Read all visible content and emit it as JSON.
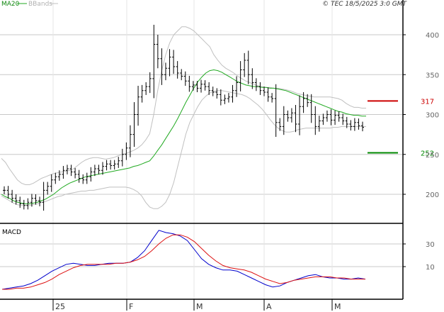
{
  "header": {
    "ma_label": "MA20",
    "bbands_label": "BBands",
    "copyright": "© TEC 18/5/2025 3:0 GMT"
  },
  "macd_label": "MACD",
  "chart_data": [
    {
      "type": "ohlc",
      "title": "",
      "y_ticks": [
        200,
        250,
        300,
        350,
        400
      ],
      "ylim": [
        180,
        410
      ],
      "x_labels": [
        "25",
        "F",
        "M",
        "A",
        "M"
      ],
      "levels": [
        {
          "label": "317",
          "value": 317,
          "color": "#cc0000"
        },
        {
          "label": "252",
          "value": 252,
          "color": "#008800"
        }
      ],
      "colors": {
        "bars": "#000000",
        "ma": "#22aa22",
        "bbands": "#c0c0c0",
        "grid": "#c8c8c8"
      },
      "series": [
        {
          "name": "MA20",
          "values": [
            200,
            197,
            195,
            192,
            190,
            189,
            188,
            188,
            189,
            190,
            192,
            194,
            197,
            200,
            204,
            208,
            211,
            214,
            216,
            218,
            220,
            222,
            223,
            224,
            225,
            226,
            227,
            228,
            229,
            230,
            231,
            232,
            233,
            235,
            236,
            238,
            240,
            242,
            248,
            255,
            262,
            270,
            278,
            286,
            295,
            305,
            315,
            324,
            333,
            341,
            347,
            352,
            355,
            356,
            355,
            353,
            350,
            347,
            344,
            341,
            339,
            337,
            336,
            335,
            335,
            334,
            334,
            333,
            333,
            332,
            331,
            330,
            328,
            326,
            324,
            322,
            320,
            318,
            316,
            314,
            312,
            310,
            308,
            306,
            304,
            303,
            301,
            300,
            299,
            299,
            298,
            298
          ]
        },
        {
          "name": "BBands",
          "values": [
            245,
            240,
            232,
            225,
            218,
            214,
            212,
            212,
            214,
            217,
            220,
            222,
            224,
            226,
            227,
            228,
            229,
            230,
            232,
            236,
            240,
            243,
            245,
            246,
            246,
            245,
            244,
            245,
            246,
            248,
            250,
            251,
            253,
            255,
            258,
            262,
            268,
            276,
            300,
            330,
            355,
            375,
            390,
            400,
            405,
            410,
            410,
            408,
            405,
            400,
            395,
            390,
            385,
            375,
            368,
            362,
            358,
            355,
            352,
            348,
            345,
            342,
            340,
            338,
            336,
            335,
            334,
            334,
            333,
            333,
            332,
            331,
            330,
            328,
            326,
            325,
            324,
            323,
            322,
            322,
            322,
            322,
            322,
            321,
            320,
            318,
            314,
            311,
            309,
            309,
            308,
            308
          ]
        },
        {
          "name": "BBands",
          "values": [
            198,
            195,
            192,
            189,
            187,
            186,
            186,
            186,
            187,
            188,
            190,
            191,
            193,
            195,
            197,
            198,
            200,
            201,
            202,
            203,
            204,
            204,
            205,
            205,
            206,
            207,
            208,
            209,
            209,
            209,
            209,
            209,
            208,
            206,
            203,
            198,
            190,
            184,
            182,
            182,
            185,
            190,
            200,
            215,
            235,
            255,
            275,
            290,
            300,
            310,
            318,
            323,
            327,
            329,
            330,
            330,
            329,
            328,
            327,
            326,
            325,
            323,
            320,
            316,
            312,
            307,
            301,
            294,
            288,
            283,
            280,
            278,
            278,
            279,
            281,
            282,
            283,
            283,
            283,
            283,
            283,
            283,
            283,
            284,
            284,
            285,
            285,
            285,
            285,
            285,
            285,
            285
          ]
        },
        {
          "name": "Close",
          "values": [
            205,
            200,
            195,
            192,
            188,
            186,
            190,
            195,
            192,
            190,
            205,
            210,
            218,
            222,
            225,
            230,
            232,
            228,
            225,
            220,
            218,
            222,
            228,
            232,
            230,
            235,
            238,
            236,
            238,
            242,
            250,
            258,
            275,
            300,
            322,
            330,
            335,
            345,
            388,
            370,
            350,
            358,
            372,
            360,
            352,
            348,
            342,
            335,
            337,
            333,
            338,
            335,
            330,
            328,
            325,
            318,
            320,
            322,
            330,
            340,
            356,
            368,
            350,
            340,
            335,
            330,
            328,
            322,
            320,
            290,
            285,
            300,
            296,
            302,
            288,
            310,
            320,
            315,
            300,
            285,
            292,
            296,
            300,
            293,
            299,
            296,
            292,
            288,
            285,
            290,
            286,
            284
          ]
        }
      ]
    },
    {
      "type": "line",
      "title": "",
      "y_ticks": [
        10,
        30
      ],
      "ylim": [
        -14,
        44
      ],
      "series": [
        {
          "name": "MACD",
          "values": [
            -10,
            -9,
            -8,
            -7,
            -5,
            -2,
            2,
            6,
            9,
            12,
            13,
            12,
            11,
            11,
            12,
            13,
            13,
            13,
            14,
            18,
            24,
            33,
            42,
            40,
            39,
            37,
            33,
            25,
            17,
            12,
            9,
            7,
            7,
            6,
            3,
            0,
            -3,
            -6,
            -8,
            -7,
            -4,
            -2,
            0,
            2,
            3,
            1,
            0,
            0,
            -1,
            -1,
            0,
            -1
          ]
        },
        {
          "name": "Signal",
          "values": [
            -10,
            -10,
            -9,
            -9,
            -8,
            -6,
            -4,
            -1,
            3,
            6,
            9,
            11,
            12,
            12,
            12,
            12,
            13,
            13,
            14,
            16,
            19,
            24,
            30,
            35,
            38,
            38,
            36,
            32,
            26,
            20,
            15,
            11,
            9,
            8,
            7,
            5,
            2,
            -1,
            -3,
            -5,
            -4,
            -2,
            -1,
            0,
            1,
            1,
            1,
            0,
            0,
            -1,
            -1,
            -1
          ]
        }
      ]
    }
  ]
}
